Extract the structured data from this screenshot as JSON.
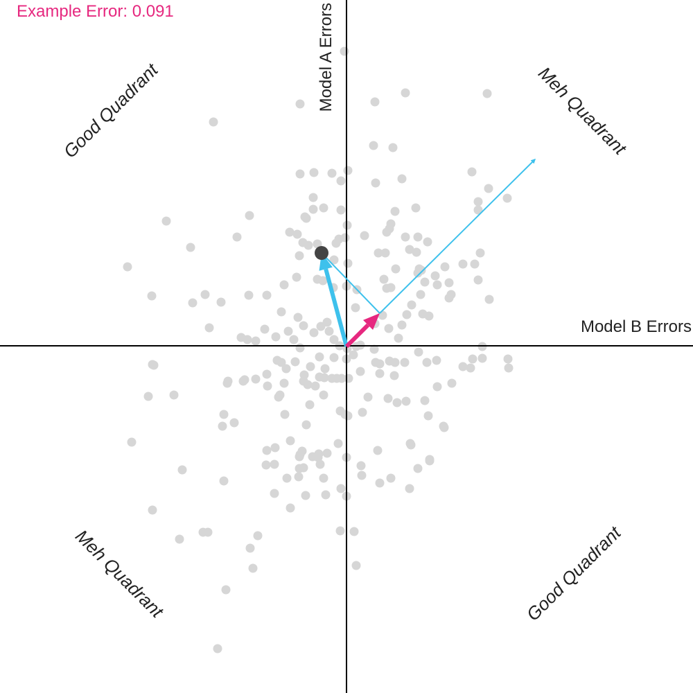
{
  "chart_data": {
    "type": "scatter",
    "title": "",
    "xlabel": "Model B Errors",
    "ylabel": "Model A Errors",
    "xlim": [
      -1,
      1
    ],
    "ylim": [
      -1,
      1
    ],
    "grid": false,
    "annotation": "Example Error: 0.091",
    "quadrant_labels": {
      "top_left": "Good Quadrant",
      "top_right": "Meh Quadrant",
      "bottom_left": "Meh Quadrant",
      "bottom_right": "Good Quadrant"
    },
    "colors": {
      "points": "#d6d6d6",
      "highlight_point": "#444444",
      "blue_vectors": "#3ec1ec",
      "pink_vector": "#e6287f",
      "axes": "#000000"
    },
    "highlight_point": {
      "x": -0.072,
      "y": 0.27
    },
    "vectors": [
      {
        "role": "model-a-error",
        "from": [
          0,
          0
        ],
        "to": [
          -0.072,
          0.27
        ],
        "color": "#3ec1ec",
        "weight": "thick"
      },
      {
        "role": "model-b-error",
        "from": [
          0,
          0
        ],
        "to": [
          0.096,
          0.096
        ],
        "color": "#e6287f",
        "weight": "thick"
      },
      {
        "role": "connector",
        "from": [
          -0.072,
          0.27
        ],
        "to": [
          0.096,
          0.096
        ],
        "color": "#3ec1ec",
        "weight": "thin"
      },
      {
        "role": "extension",
        "from": [
          0.096,
          0.096
        ],
        "to": [
          0.544,
          0.54
        ],
        "color": "#3ec1ec",
        "weight": "thin"
      }
    ],
    "points": [
      {
        "x": -0.006,
        "y": 0.852
      },
      {
        "x": -0.134,
        "y": 0.7
      },
      {
        "x": -0.384,
        "y": 0.648
      },
      {
        "x": 0.082,
        "y": 0.706
      },
      {
        "x": 0.17,
        "y": 0.732
      },
      {
        "x": 0.406,
        "y": 0.73
      },
      {
        "x": 0.078,
        "y": 0.58
      },
      {
        "x": 0.134,
        "y": 0.574
      },
      {
        "x": -0.134,
        "y": 0.498
      },
      {
        "x": -0.094,
        "y": 0.502
      },
      {
        "x": -0.042,
        "y": 0.5
      },
      {
        "x": 0.004,
        "y": 0.508
      },
      {
        "x": -0.016,
        "y": 0.478
      },
      {
        "x": 0.084,
        "y": 0.472
      },
      {
        "x": 0.16,
        "y": 0.484
      },
      {
        "x": 0.362,
        "y": 0.504
      },
      {
        "x": 0.41,
        "y": 0.456
      },
      {
        "x": 0.464,
        "y": 0.428
      },
      {
        "x": 0.38,
        "y": 0.418
      },
      {
        "x": 0.38,
        "y": 0.394
      },
      {
        "x": -0.096,
        "y": 0.43
      },
      {
        "x": -0.096,
        "y": 0.396
      },
      {
        "x": -0.066,
        "y": 0.4
      },
      {
        "x": -0.016,
        "y": 0.394
      },
      {
        "x": -0.28,
        "y": 0.378
      },
      {
        "x": -0.52,
        "y": 0.362
      },
      {
        "x": 0.14,
        "y": 0.39
      },
      {
        "x": 0.2,
        "y": 0.4
      },
      {
        "x": -0.12,
        "y": 0.374
      },
      {
        "x": -0.116,
        "y": 0.37
      },
      {
        "x": 0.128,
        "y": 0.354
      },
      {
        "x": 0.124,
        "y": 0.34
      },
      {
        "x": 0.002,
        "y": 0.35
      },
      {
        "x": -0.164,
        "y": 0.33
      },
      {
        "x": -0.142,
        "y": 0.324
      },
      {
        "x": -0.316,
        "y": 0.316
      },
      {
        "x": 0.052,
        "y": 0.32
      },
      {
        "x": 0.116,
        "y": 0.33
      },
      {
        "x": 0.17,
        "y": 0.316
      },
      {
        "x": 0.206,
        "y": 0.316
      },
      {
        "x": -0.022,
        "y": 0.31
      },
      {
        "x": -0.004,
        "y": 0.314
      },
      {
        "x": -0.126,
        "y": 0.3
      },
      {
        "x": -0.11,
        "y": 0.292
      },
      {
        "x": -0.084,
        "y": 0.296
      },
      {
        "x": -0.03,
        "y": 0.298
      },
      {
        "x": -0.45,
        "y": 0.286
      },
      {
        "x": 0.182,
        "y": 0.28
      },
      {
        "x": 0.234,
        "y": 0.302
      },
      {
        "x": 0.386,
        "y": 0.27
      },
      {
        "x": 0.112,
        "y": 0.27
      },
      {
        "x": 0.092,
        "y": 0.27
      },
      {
        "x": 0.202,
        "y": 0.272
      },
      {
        "x": -0.136,
        "y": 0.262
      },
      {
        "x": 0.336,
        "y": 0.238
      },
      {
        "x": 0.37,
        "y": 0.238
      },
      {
        "x": -0.036,
        "y": 0.25
      },
      {
        "x": -0.632,
        "y": 0.23
      },
      {
        "x": 0.004,
        "y": 0.24
      },
      {
        "x": 0.142,
        "y": 0.224
      },
      {
        "x": 0.21,
        "y": 0.224
      },
      {
        "x": 0.216,
        "y": 0.22
      },
      {
        "x": 0.284,
        "y": 0.23
      },
      {
        "x": 0.206,
        "y": 0.212
      },
      {
        "x": -0.068,
        "y": 0.19
      },
      {
        "x": -0.084,
        "y": 0.194
      },
      {
        "x": -0.144,
        "y": 0.2
      },
      {
        "x": 0.108,
        "y": 0.194
      },
      {
        "x": 0.256,
        "y": 0.204
      },
      {
        "x": 0.116,
        "y": 0.168
      },
      {
        "x": 0.128,
        "y": 0.17
      },
      {
        "x": 0.226,
        "y": 0.186
      },
      {
        "x": 0.262,
        "y": 0.178
      },
      {
        "x": 0.296,
        "y": 0.184
      },
      {
        "x": 0.38,
        "y": 0.192
      },
      {
        "x": -0.18,
        "y": 0.178
      },
      {
        "x": -0.038,
        "y": 0.17
      },
      {
        "x": 0.0,
        "y": 0.174
      },
      {
        "x": -0.562,
        "y": 0.146
      },
      {
        "x": -0.408,
        "y": 0.15
      },
      {
        "x": -0.282,
        "y": 0.148
      },
      {
        "x": -0.23,
        "y": 0.148
      },
      {
        "x": 0.03,
        "y": 0.164
      },
      {
        "x": 0.214,
        "y": 0.15
      },
      {
        "x": 0.296,
        "y": 0.14
      },
      {
        "x": 0.302,
        "y": 0.15
      },
      {
        "x": 0.412,
        "y": 0.136
      },
      {
        "x": -0.444,
        "y": 0.126
      },
      {
        "x": -0.362,
        "y": 0.128
      },
      {
        "x": -0.188,
        "y": 0.1
      },
      {
        "x": 0.026,
        "y": 0.112
      },
      {
        "x": 0.188,
        "y": 0.12
      },
      {
        "x": 0.174,
        "y": 0.092
      },
      {
        "x": 0.22,
        "y": 0.094
      },
      {
        "x": 0.238,
        "y": 0.088
      },
      {
        "x": -0.14,
        "y": 0.084
      },
      {
        "x": -0.124,
        "y": 0.06
      },
      {
        "x": -0.056,
        "y": 0.07
      },
      {
        "x": -0.074,
        "y": 0.058
      },
      {
        "x": 0.104,
        "y": 0.09
      },
      {
        "x": 0.082,
        "y": 0.066
      },
      {
        "x": 0.16,
        "y": 0.062
      },
      {
        "x": -0.236,
        "y": 0.05
      },
      {
        "x": -0.168,
        "y": 0.044
      },
      {
        "x": -0.094,
        "y": 0.04
      },
      {
        "x": -0.05,
        "y": 0.044
      },
      {
        "x": -0.396,
        "y": 0.054
      },
      {
        "x": 0.122,
        "y": 0.052
      },
      {
        "x": 0.15,
        "y": 0.024
      },
      {
        "x": -0.304,
        "y": 0.026
      },
      {
        "x": -0.286,
        "y": 0.02
      },
      {
        "x": -0.262,
        "y": 0.016
      },
      {
        "x": -0.204,
        "y": 0.028
      },
      {
        "x": -0.152,
        "y": 0.02
      },
      {
        "x": -0.036,
        "y": 0.02
      },
      {
        "x": -0.02,
        "y": 0.002
      },
      {
        "x": 0.002,
        "y": -0.006
      },
      {
        "x": 0.028,
        "y": 0.0
      },
      {
        "x": 0.04,
        "y": 0.004
      },
      {
        "x": 0.08,
        "y": -0.008
      },
      {
        "x": 0.392,
        "y": 0.0
      },
      {
        "x": -0.134,
        "y": -0.004
      },
      {
        "x": 0.208,
        "y": -0.016
      },
      {
        "x": 0.392,
        "y": -0.034
      },
      {
        "x": 0.26,
        "y": -0.04
      },
      {
        "x": 0.232,
        "y": -0.046
      },
      {
        "x": -0.078,
        "y": -0.03
      },
      {
        "x": -0.036,
        "y": -0.032
      },
      {
        "x": 0.0,
        "y": -0.036
      },
      {
        "x": 0.02,
        "y": -0.024
      },
      {
        "x": -0.2,
        "y": -0.04
      },
      {
        "x": -0.188,
        "y": -0.046
      },
      {
        "x": -0.148,
        "y": -0.044
      },
      {
        "x": -0.56,
        "y": -0.052
      },
      {
        "x": -0.556,
        "y": -0.054
      },
      {
        "x": 0.084,
        "y": -0.046
      },
      {
        "x": 0.096,
        "y": -0.05
      },
      {
        "x": 0.124,
        "y": -0.042
      },
      {
        "x": 0.14,
        "y": -0.046
      },
      {
        "x": 0.168,
        "y": -0.046
      },
      {
        "x": 0.336,
        "y": -0.058
      },
      {
        "x": 0.364,
        "y": -0.036
      },
      {
        "x": 0.466,
        "y": -0.036
      },
      {
        "x": 0.468,
        "y": -0.062
      },
      {
        "x": -0.174,
        "y": -0.064
      },
      {
        "x": -0.104,
        "y": -0.058
      },
      {
        "x": -0.062,
        "y": -0.064
      },
      {
        "x": 0.04,
        "y": -0.072
      },
      {
        "x": 0.096,
        "y": -0.078
      },
      {
        "x": 0.138,
        "y": -0.084
      },
      {
        "x": 0.358,
        "y": -0.062
      },
      {
        "x": -0.23,
        "y": -0.08
      },
      {
        "x": -0.262,
        "y": -0.094
      },
      {
        "x": -0.122,
        "y": -0.082
      },
      {
        "x": -0.078,
        "y": -0.088
      },
      {
        "x": -0.064,
        "y": -0.09
      },
      {
        "x": -0.042,
        "y": -0.092
      },
      {
        "x": -0.028,
        "y": -0.092
      },
      {
        "x": -0.014,
        "y": -0.092
      },
      {
        "x": 0.006,
        "y": -0.092
      },
      {
        "x": -0.298,
        "y": -0.1
      },
      {
        "x": -0.342,
        "y": -0.1
      },
      {
        "x": -0.294,
        "y": -0.096
      },
      {
        "x": -0.18,
        "y": -0.106
      },
      {
        "x": -0.124,
        "y": -0.1
      },
      {
        "x": -0.09,
        "y": -0.114
      },
      {
        "x": -0.112,
        "y": -0.11
      },
      {
        "x": -0.228,
        "y": -0.114
      },
      {
        "x": -0.344,
        "y": -0.106
      },
      {
        "x": 0.262,
        "y": -0.116
      },
      {
        "x": 0.304,
        "y": -0.106
      },
      {
        "x": -0.572,
        "y": -0.144
      },
      {
        "x": -0.498,
        "y": -0.14
      },
      {
        "x": -0.192,
        "y": -0.14
      },
      {
        "x": -0.196,
        "y": -0.146
      },
      {
        "x": -0.066,
        "y": -0.14
      },
      {
        "x": 0.062,
        "y": -0.146
      },
      {
        "x": 0.12,
        "y": -0.15
      },
      {
        "x": 0.172,
        "y": -0.158
      },
      {
        "x": 0.146,
        "y": -0.162
      },
      {
        "x": 0.226,
        "y": -0.156
      },
      {
        "x": -0.106,
        "y": -0.168
      },
      {
        "x": -0.018,
        "y": -0.186
      },
      {
        "x": -0.004,
        "y": -0.196
      },
      {
        "x": 0.004,
        "y": -0.2
      },
      {
        "x": 0.046,
        "y": -0.19
      },
      {
        "x": -0.354,
        "y": -0.196
      },
      {
        "x": -0.324,
        "y": -0.22
      },
      {
        "x": -0.358,
        "y": -0.23
      },
      {
        "x": -0.178,
        "y": -0.196
      },
      {
        "x": 0.236,
        "y": -0.2
      },
      {
        "x": 0.28,
        "y": -0.23
      },
      {
        "x": -0.116,
        "y": -0.226
      },
      {
        "x": 0.282,
        "y": -0.234
      },
      {
        "x": -0.162,
        "y": -0.272
      },
      {
        "x": -0.206,
        "y": -0.292
      },
      {
        "x": -0.62,
        "y": -0.276
      },
      {
        "x": 0.09,
        "y": -0.3
      },
      {
        "x": 0.184,
        "y": -0.28
      },
      {
        "x": 0.186,
        "y": -0.284
      },
      {
        "x": -0.128,
        "y": -0.302
      },
      {
        "x": -0.134,
        "y": -0.312
      },
      {
        "x": -0.08,
        "y": -0.31
      },
      {
        "x": -0.056,
        "y": -0.308
      },
      {
        "x": -0.024,
        "y": -0.28
      },
      {
        "x": -0.136,
        "y": -0.318
      },
      {
        "x": -0.098,
        "y": -0.318
      },
      {
        "x": -0.23,
        "y": -0.3
      },
      {
        "x": -0.082,
        "y": -0.32
      },
      {
        "x": 0.0,
        "y": -0.32
      },
      {
        "x": 0.24,
        "y": -0.326
      },
      {
        "x": -0.208,
        "y": -0.34
      },
      {
        "x": -0.232,
        "y": -0.342
      },
      {
        "x": -0.076,
        "y": -0.34
      },
      {
        "x": 0.042,
        "y": -0.344
      },
      {
        "x": 0.206,
        "y": -0.352
      },
      {
        "x": 0.24,
        "y": -0.33
      },
      {
        "x": -0.136,
        "y": -0.352
      },
      {
        "x": -0.124,
        "y": -0.35
      },
      {
        "x": 0.044,
        "y": -0.372
      },
      {
        "x": -0.474,
        "y": -0.356
      },
      {
        "x": -0.066,
        "y": -0.38
      },
      {
        "x": -0.172,
        "y": -0.38
      },
      {
        "x": -0.138,
        "y": -0.376
      },
      {
        "x": -0.354,
        "y": -0.388
      },
      {
        "x": -0.06,
        "y": -0.428
      },
      {
        "x": 0.096,
        "y": -0.394
      },
      {
        "x": 0.128,
        "y": -0.38
      },
      {
        "x": -0.016,
        "y": -0.41
      },
      {
        "x": 0.0,
        "y": -0.432
      },
      {
        "x": 0.182,
        "y": -0.41
      },
      {
        "x": -0.208,
        "y": -0.424
      },
      {
        "x": -0.118,
        "y": -0.43
      },
      {
        "x": -0.56,
        "y": -0.472
      },
      {
        "x": -0.162,
        "y": -0.466
      },
      {
        "x": -0.414,
        "y": -0.536
      },
      {
        "x": -0.4,
        "y": -0.536
      },
      {
        "x": -0.482,
        "y": -0.556
      },
      {
        "x": -0.256,
        "y": -0.546
      },
      {
        "x": -0.278,
        "y": -0.582
      },
      {
        "x": -0.018,
        "y": -0.532
      },
      {
        "x": 0.022,
        "y": -0.534
      },
      {
        "x": -0.27,
        "y": -0.64
      },
      {
        "x": 0.028,
        "y": -0.632
      },
      {
        "x": -0.348,
        "y": -0.702
      },
      {
        "x": -0.372,
        "y": -0.872
      }
    ]
  }
}
